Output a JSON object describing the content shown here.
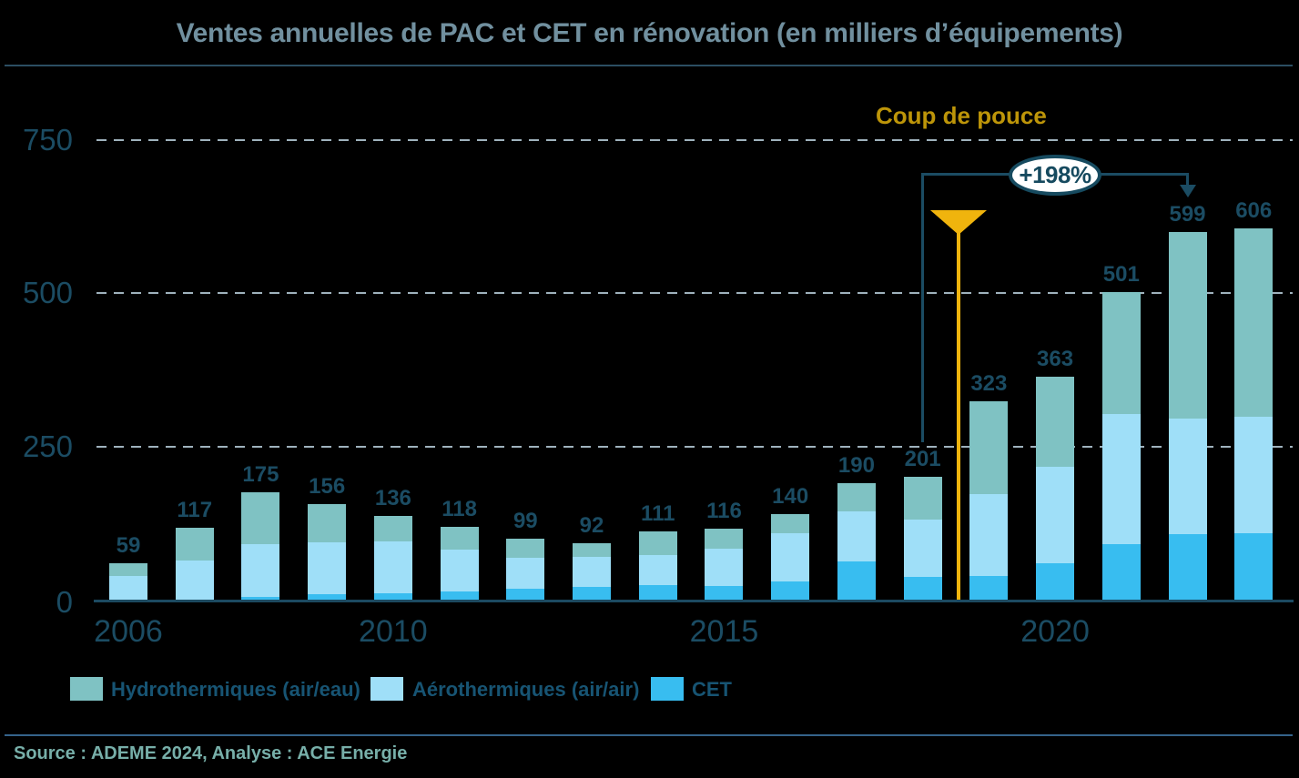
{
  "title": "Ventes annuelles de PAC et CET en rénovation (en milliers d’équipements)",
  "source": "Source : ADEME 2024, Analyse : ACE Energie",
  "annotations": {
    "coup_label": "Coup de pouce",
    "growth_label": "+198%"
  },
  "legend": {
    "items": [
      {
        "label": "Hydrothermiques (air/eau)",
        "color": "#7FC2C3"
      },
      {
        "label": "Aérothermiques (air/air)",
        "color": "#9FDFF8"
      },
      {
        "label": "CET",
        "color": "#38BDF0"
      }
    ]
  },
  "colors": {
    "background": "#000000",
    "title_text": "#71909F",
    "label_text": "#1B4C63",
    "legend_text": "#175473",
    "grid": "#9FB2BD",
    "axis": "#1C4A61",
    "gold_text": "#BD9509",
    "gold_marker": "#F0B40D",
    "source_text": "#77AFA9",
    "separator_top": "#2C4E63",
    "separator_bottom": "#35638B",
    "badge_background": "#FFFFFF",
    "badge_border": "#164A5F"
  },
  "chart_data": {
    "type": "bar",
    "stacked": true,
    "title": "Ventes annuelles de PAC et CET en rénovation (en milliers d’équipements)",
    "unit": "milliers d'équipements",
    "x": [
      2006,
      2007,
      2008,
      2009,
      2010,
      2011,
      2012,
      2013,
      2014,
      2015,
      2016,
      2017,
      2018,
      2019,
      2020,
      2021,
      2022,
      2023
    ],
    "x_tick_labels": [
      "2006",
      "2010",
      "2015",
      "2020"
    ],
    "x_tick_years": [
      2006,
      2010,
      2015,
      2020
    ],
    "totals": [
      59,
      117,
      175,
      156,
      136,
      118,
      99,
      92,
      111,
      116,
      140,
      190,
      201,
      323,
      363,
      501,
      599,
      606
    ],
    "series": [
      {
        "name": "CET",
        "color": "#38BDF0",
        "values": [
          0,
          0,
          4,
          9,
          11,
          13,
          18,
          21,
          24,
          22,
          29,
          63,
          37,
          39,
          60,
          90,
          107,
          109
        ]
      },
      {
        "name": "Aérothermiques (air/air)",
        "color": "#9FDFF8",
        "values": [
          38,
          64,
          86,
          85,
          84,
          68,
          50,
          48,
          49,
          61,
          79,
          81,
          94,
          133,
          157,
          212,
          188,
          189
        ]
      },
      {
        "name": "Hydrothermiques (air/eau)",
        "color": "#7FC2C3",
        "values": [
          21,
          53,
          85,
          62,
          41,
          37,
          31,
          23,
          38,
          33,
          32,
          46,
          70,
          151,
          146,
          199,
          304,
          308
        ]
      }
    ],
    "yticks": [
      0,
      250,
      500,
      750
    ],
    "ylim": [
      0,
      800
    ],
    "grid": "horizontal-dashed",
    "legend_position": "bottom",
    "annotation_growth": {
      "from_year": 2018,
      "to_year": 2022,
      "label": "+198%"
    },
    "annotation_marker": {
      "label": "Coup de pouce",
      "position_between_years": [
        2018,
        2019
      ]
    }
  }
}
